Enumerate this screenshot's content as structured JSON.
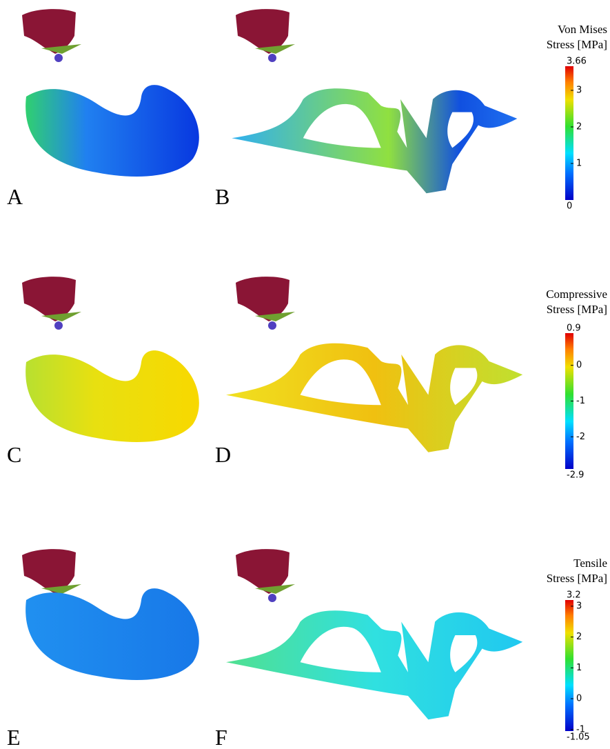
{
  "panels": [
    {
      "label": "A"
    },
    {
      "label": "B"
    },
    {
      "label": "C"
    },
    {
      "label": "D"
    },
    {
      "label": "E"
    },
    {
      "label": "F"
    }
  ],
  "colorbars": [
    {
      "title": [
        "Von Mises",
        "Stress [MPa]"
      ],
      "max": 3.66,
      "min": 0,
      "ticks": [
        3,
        2,
        1
      ]
    },
    {
      "title": [
        "Compressive",
        "Stress [MPa]"
      ],
      "max": 0.9,
      "min": -2.9,
      "ticks": [
        0,
        -1,
        -2
      ]
    },
    {
      "title": [
        "Tensile",
        "Stress [MPa]"
      ],
      "max": 3.2,
      "min": -1.05,
      "ticks": [
        3,
        2,
        1,
        0,
        -1
      ]
    }
  ]
}
